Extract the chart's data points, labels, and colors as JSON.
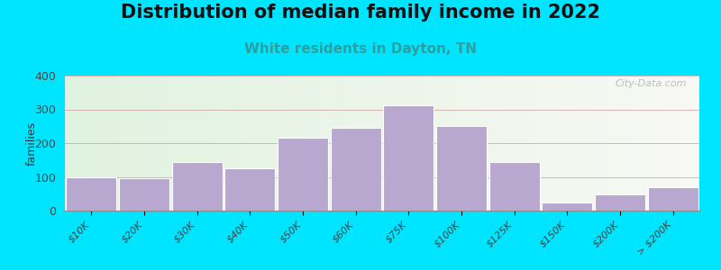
{
  "title": "Distribution of median family income in 2022",
  "subtitle": "White residents in Dayton, TN",
  "categories": [
    "$10K",
    "$20K",
    "$30K",
    "$40K",
    "$50K",
    "$60K",
    "$75K",
    "$100K",
    "$125K",
    "$150K",
    "$200K",
    "> $200K"
  ],
  "values": [
    100,
    97,
    143,
    125,
    215,
    245,
    312,
    252,
    143,
    25,
    48,
    70
  ],
  "bar_color": "#b8a8d0",
  "bar_edge_color": "#ffffff",
  "ylabel": "families",
  "ylim": [
    0,
    400
  ],
  "yticks": [
    0,
    100,
    200,
    300,
    400
  ],
  "background_outer": "#00e5ff",
  "title_fontsize": 15,
  "subtitle_fontsize": 11,
  "subtitle_color": "#2e9e9e",
  "watermark": "City-Data.com"
}
